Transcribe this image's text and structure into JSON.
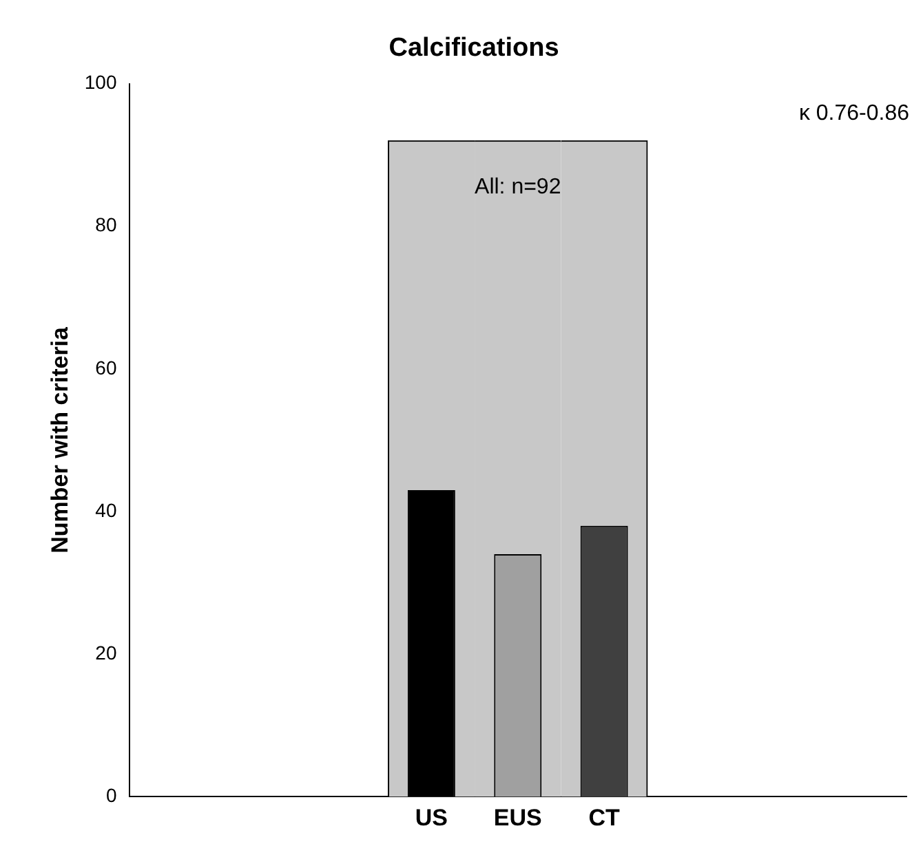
{
  "chart_data": {
    "type": "bar",
    "title": "Calcifications",
    "ylabel": "Number with criteria",
    "categories": [
      null,
      null,
      null,
      "US",
      "EUS",
      "CT",
      null,
      null,
      null
    ],
    "series": [
      {
        "color": "#c8c8c8",
        "values": [
          null,
          null,
          null,
          92,
          92,
          92,
          null,
          null,
          null
        ]
      },
      {
        "colors": [
          "#000000",
          "#000000",
          "#000000",
          "#000000",
          "#a0a0a0",
          "#404040",
          "#000000",
          "#000000",
          "#000000"
        ],
        "values": [
          null,
          null,
          null,
          43,
          34,
          38,
          null,
          null,
          null
        ]
      }
    ],
    "ylim": [
      0,
      100
    ],
    "yticks": [
      0,
      20,
      40,
      60,
      80,
      100
    ],
    "grid": false,
    "legend": false,
    "annotations": [
      "All: n=92",
      "κ 0.76-0.86"
    ]
  }
}
